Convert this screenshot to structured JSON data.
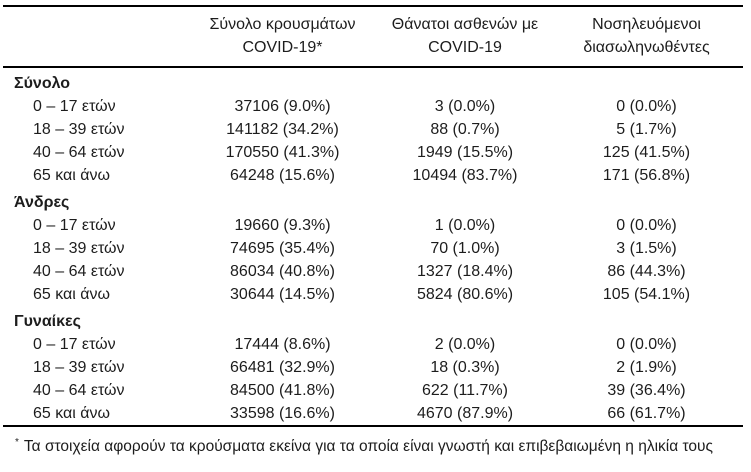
{
  "table": {
    "columns": [
      {
        "line1": "Σύνολο κρουσμάτων",
        "line2": "COVID-19*"
      },
      {
        "line1": "Θάνατοι ασθενών με",
        "line2": "COVID-19"
      },
      {
        "line1": "Νοσηλευόμενοι",
        "line2": "διασωληνωθέντες"
      }
    ],
    "groups": [
      {
        "label": "Σύνολο",
        "rows": [
          {
            "label": "0 – 17 ετών",
            "cases": "37106 (9.0%)",
            "deaths": "3 (0.0%)",
            "intubated": "0 (0.0%)"
          },
          {
            "label": "18 – 39 ετών",
            "cases": "141182 (34.2%)",
            "deaths": "88 (0.7%)",
            "intubated": "5 (1.7%)"
          },
          {
            "label": "40 – 64 ετών",
            "cases": "170550 (41.3%)",
            "deaths": "1949 (15.5%)",
            "intubated": "125 (41.5%)"
          },
          {
            "label": "65 και άνω",
            "cases": "64248 (15.6%)",
            "deaths": "10494 (83.7%)",
            "intubated": "171 (56.8%)"
          }
        ]
      },
      {
        "label": "Άνδρες",
        "rows": [
          {
            "label": "0 – 17 ετών",
            "cases": "19660 (9.3%)",
            "deaths": "1 (0.0%)",
            "intubated": "0 (0.0%)"
          },
          {
            "label": "18 – 39 ετών",
            "cases": "74695 (35.4%)",
            "deaths": "70 (1.0%)",
            "intubated": "3 (1.5%)"
          },
          {
            "label": "40 – 64 ετών",
            "cases": "86034 (40.8%)",
            "deaths": "1327 (18.4%)",
            "intubated": "86 (44.3%)"
          },
          {
            "label": "65 και άνω",
            "cases": "30644 (14.5%)",
            "deaths": "5824 (80.6%)",
            "intubated": "105 (54.1%)"
          }
        ]
      },
      {
        "label": "Γυναίκες",
        "rows": [
          {
            "label": "0 – 17 ετών",
            "cases": "17444 (8.6%)",
            "deaths": "2 (0.0%)",
            "intubated": "0 (0.0%)"
          },
          {
            "label": "18 – 39 ετών",
            "cases": "66481 (32.9%)",
            "deaths": "18 (0.3%)",
            "intubated": "2 (1.9%)"
          },
          {
            "label": "40 – 64 ετών",
            "cases": "84500 (41.8%)",
            "deaths": "622 (11.7%)",
            "intubated": "39 (36.4%)"
          },
          {
            "label": "65 και άνω",
            "cases": "33598 (16.6%)",
            "deaths": "4670 (87.9%)",
            "intubated": "66 (61.7%)"
          }
        ]
      }
    ],
    "footnote_marker": "*",
    "footnote": "Τα στοιχεία αφορούν τα κρούσματα εκείνα για τα οποία είναι γνωστή και επιβεβαιωμένη η ηλικία τους"
  },
  "colors": {
    "text": "#1d1d1d",
    "rule": "#000000",
    "background": "#ffffff"
  }
}
